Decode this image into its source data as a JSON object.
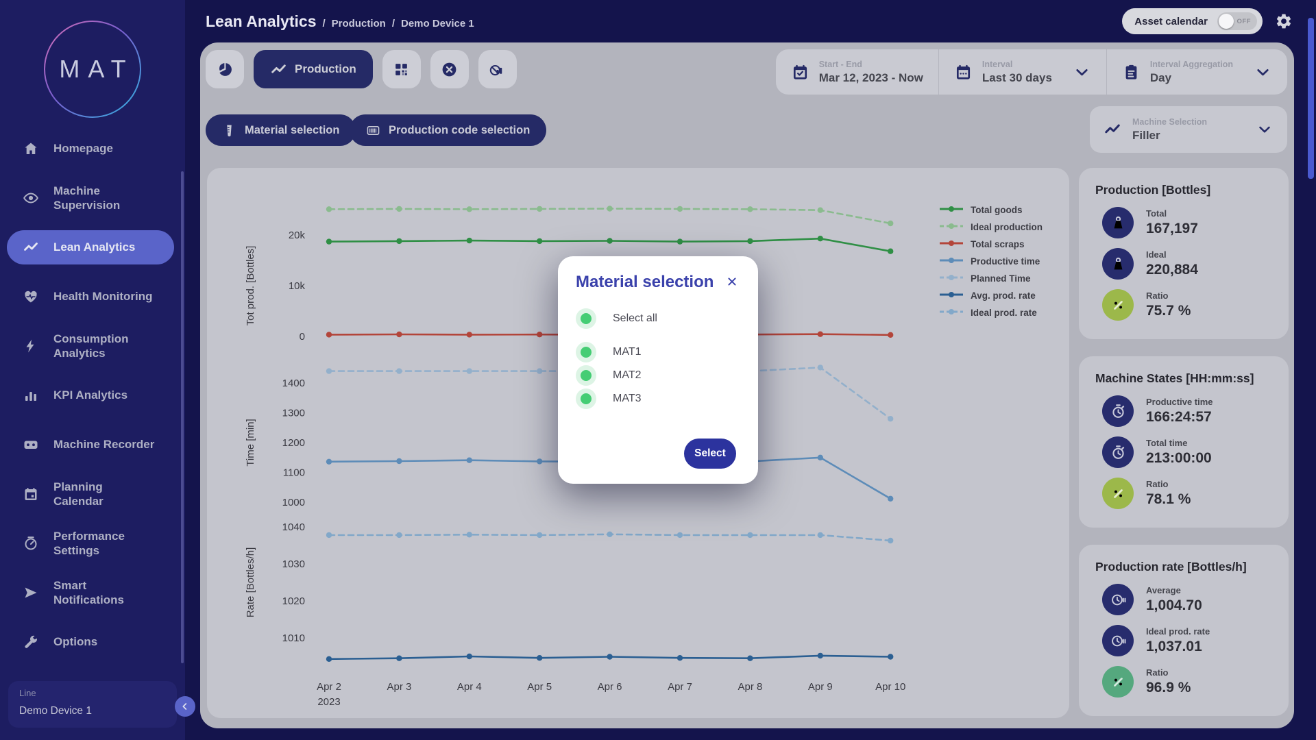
{
  "header": {
    "title": "Lean Analytics",
    "breadcrumbs": [
      "Production",
      "Demo Device 1"
    ],
    "asset_calendar": {
      "label": "Asset calendar",
      "state": "OFF"
    }
  },
  "sidebar": {
    "logo": "MAT",
    "items": [
      {
        "label": "Homepage",
        "icon": "home",
        "active": false
      },
      {
        "label": "Machine\nSupervision",
        "icon": "eye",
        "active": false
      },
      {
        "label": "Lean Analytics",
        "icon": "trend",
        "active": true
      },
      {
        "label": "Health Monitoring",
        "icon": "heart-pulse",
        "active": false
      },
      {
        "label": "Consumption\nAnalytics",
        "icon": "bolt",
        "active": false
      },
      {
        "label": "KPI Analytics",
        "icon": "bar-chart",
        "active": false
      },
      {
        "label": "Machine Recorder",
        "icon": "cassette",
        "active": false
      },
      {
        "label": "Planning\nCalendar",
        "icon": "calendar",
        "active": false
      },
      {
        "label": "Performance\nSettings",
        "icon": "gauge",
        "active": false
      },
      {
        "label": "Smart\nNotifications",
        "icon": "send",
        "active": false
      },
      {
        "label": "Options",
        "icon": "wrench",
        "active": false
      }
    ],
    "line_label": "Line",
    "line_value": "Demo Device 1"
  },
  "toolbar": {
    "view_buttons": [
      {
        "icon": "pie-chart",
        "label": "",
        "active": false,
        "name": "pie-view-button"
      },
      {
        "icon": "trend",
        "label": "Production",
        "active": true,
        "name": "production-view-button"
      },
      {
        "icon": "qr-code",
        "label": "",
        "active": false,
        "name": "qr-view-button"
      },
      {
        "icon": "circle-x",
        "label": "",
        "active": false,
        "name": "clear-view-button"
      },
      {
        "icon": "chart-off",
        "label": "",
        "active": false,
        "name": "chart-off-view-button"
      }
    ],
    "start_end": {
      "label": "Start - End",
      "value": "Mar 12, 2023 - Now"
    },
    "interval": {
      "label": "Interval",
      "value": "Last 30 days"
    },
    "aggregation": {
      "label": "Interval Aggregation",
      "value": "Day"
    }
  },
  "filters": {
    "material_button": "Material selection",
    "production_code_button": "Production code selection",
    "machine_selection": {
      "label": "Machine Selection",
      "value": "Filler"
    }
  },
  "modal": {
    "title": "Material selection",
    "select_all": "Select all",
    "options": [
      "MAT1",
      "MAT2",
      "MAT3"
    ],
    "submit": "Select"
  },
  "cards": [
    {
      "title": "Production [Bottles]",
      "rows": [
        {
          "icon": "weight",
          "icon_color": "#272c6d",
          "label": "Total",
          "value": "167,197"
        },
        {
          "icon": "weight",
          "icon_color": "#272c6d",
          "label": "Ideal",
          "value": "220,884"
        },
        {
          "icon": "percent",
          "icon_color": "#9cb84a",
          "label": "Ratio",
          "value": "75.7 %"
        }
      ]
    },
    {
      "title": "Machine States [HH:mm:ss]",
      "rows": [
        {
          "icon": "stopwatch",
          "icon_color": "#272c6d",
          "label": "Productive time",
          "value": "166:24:57"
        },
        {
          "icon": "stopwatch",
          "icon_color": "#272c6d",
          "label": "Total time",
          "value": "213:00:00"
        },
        {
          "icon": "percent",
          "icon_color": "#9cb84a",
          "label": "Ratio",
          "value": "78.1 %"
        }
      ]
    },
    {
      "title": "Production rate [Bottles/h]",
      "rows": [
        {
          "icon": "rate-clock",
          "icon_color": "#272c6d",
          "label": "Average",
          "value": "1,004.70"
        },
        {
          "icon": "rate-clock",
          "icon_color": "#272c6d",
          "label": "Ideal prod. rate",
          "value": "1,037.01"
        },
        {
          "icon": "percent",
          "icon_color": "#55a87e",
          "label": "Ratio",
          "value": "96.9 %"
        }
      ]
    }
  ],
  "chart_data": {
    "type": "line",
    "x_labels": [
      "Apr 2",
      "Apr 3",
      "Apr 4",
      "Apr 5",
      "Apr 6",
      "Apr 7",
      "Apr 8",
      "Apr 9",
      "Apr 10"
    ],
    "x_first_tick_sub_label": "2023",
    "grid": false,
    "legend_position": "right-top",
    "subplots": [
      {
        "ylabel": "Tot prod. [Bottles]",
        "yticks": [
          {
            "value": 20000,
            "label": "20k"
          },
          {
            "value": 10000,
            "label": "10k"
          },
          {
            "value": 0,
            "label": "0"
          }
        ],
        "series": [
          {
            "name": "Total goods",
            "color": "#2f8f45",
            "dash": false,
            "values": [
              18700,
              18800,
              18900,
              18800,
              18850,
              18700,
              18800,
              19300,
              16800
            ]
          },
          {
            "name": "Ideal production",
            "color": "#8abb8e",
            "dash": true,
            "values": [
              25100,
              25150,
              25100,
              25150,
              25200,
              25150,
              25100,
              24900,
              22300
            ]
          },
          {
            "name": "Total scraps",
            "color": "#b3453a",
            "dash": false,
            "values": [
              350,
              400,
              350,
              380,
              350,
              360,
              380,
              450,
              300
            ]
          }
        ]
      },
      {
        "ylabel": "Time [min]",
        "yticks": [
          {
            "value": 1400,
            "label": "1400"
          },
          {
            "value": 1300,
            "label": "1300"
          },
          {
            "value": 1200,
            "label": "1200"
          },
          {
            "value": 1100,
            "label": "1100"
          },
          {
            "value": 1000,
            "label": "1000"
          }
        ],
        "series": [
          {
            "name": "Productive time",
            "color": "#5d8cb8",
            "dash": false,
            "values": [
              1136,
              1138,
              1141,
              1137,
              1136,
              1135,
              1137,
              1150,
              1012
            ]
          },
          {
            "name": "Planned Time",
            "color": "#93b0cb",
            "dash": true,
            "values": [
              1440,
              1440,
              1440,
              1440,
              1440,
              1440,
              1440,
              1452,
              1280
            ]
          }
        ]
      },
      {
        "ylabel": "Rate [Bottles/h]",
        "yticks": [
          {
            "value": 1040,
            "label": "1040"
          },
          {
            "value": 1030,
            "label": "1030"
          },
          {
            "value": 1020,
            "label": "1020"
          },
          {
            "value": 1010,
            "label": "1010"
          }
        ],
        "series": [
          {
            "name": "Avg. prod. rate",
            "color": "#2b5f92",
            "dash": false,
            "values": [
              1004.3,
              1004.5,
              1005.0,
              1004.6,
              1004.9,
              1004.6,
              1004.5,
              1005.2,
              1004.9
            ]
          },
          {
            "name": "Ideal prod. rate",
            "color": "#82a8c9",
            "dash": true,
            "values": [
              1037.8,
              1037.8,
              1037.9,
              1037.8,
              1038.0,
              1037.8,
              1037.8,
              1037.8,
              1036.3
            ]
          }
        ]
      }
    ]
  },
  "colors": {
    "brand_navy": "#252a66",
    "sidebar_bg": "#1d1d61",
    "active_item": "#5a64c9",
    "modal_title_blue": "#3a41ab",
    "radio_green": "#45cd74",
    "select_button": "#2c339e",
    "ratio_olive": "#9cb84a",
    "ratio_green": "#55a87e"
  }
}
